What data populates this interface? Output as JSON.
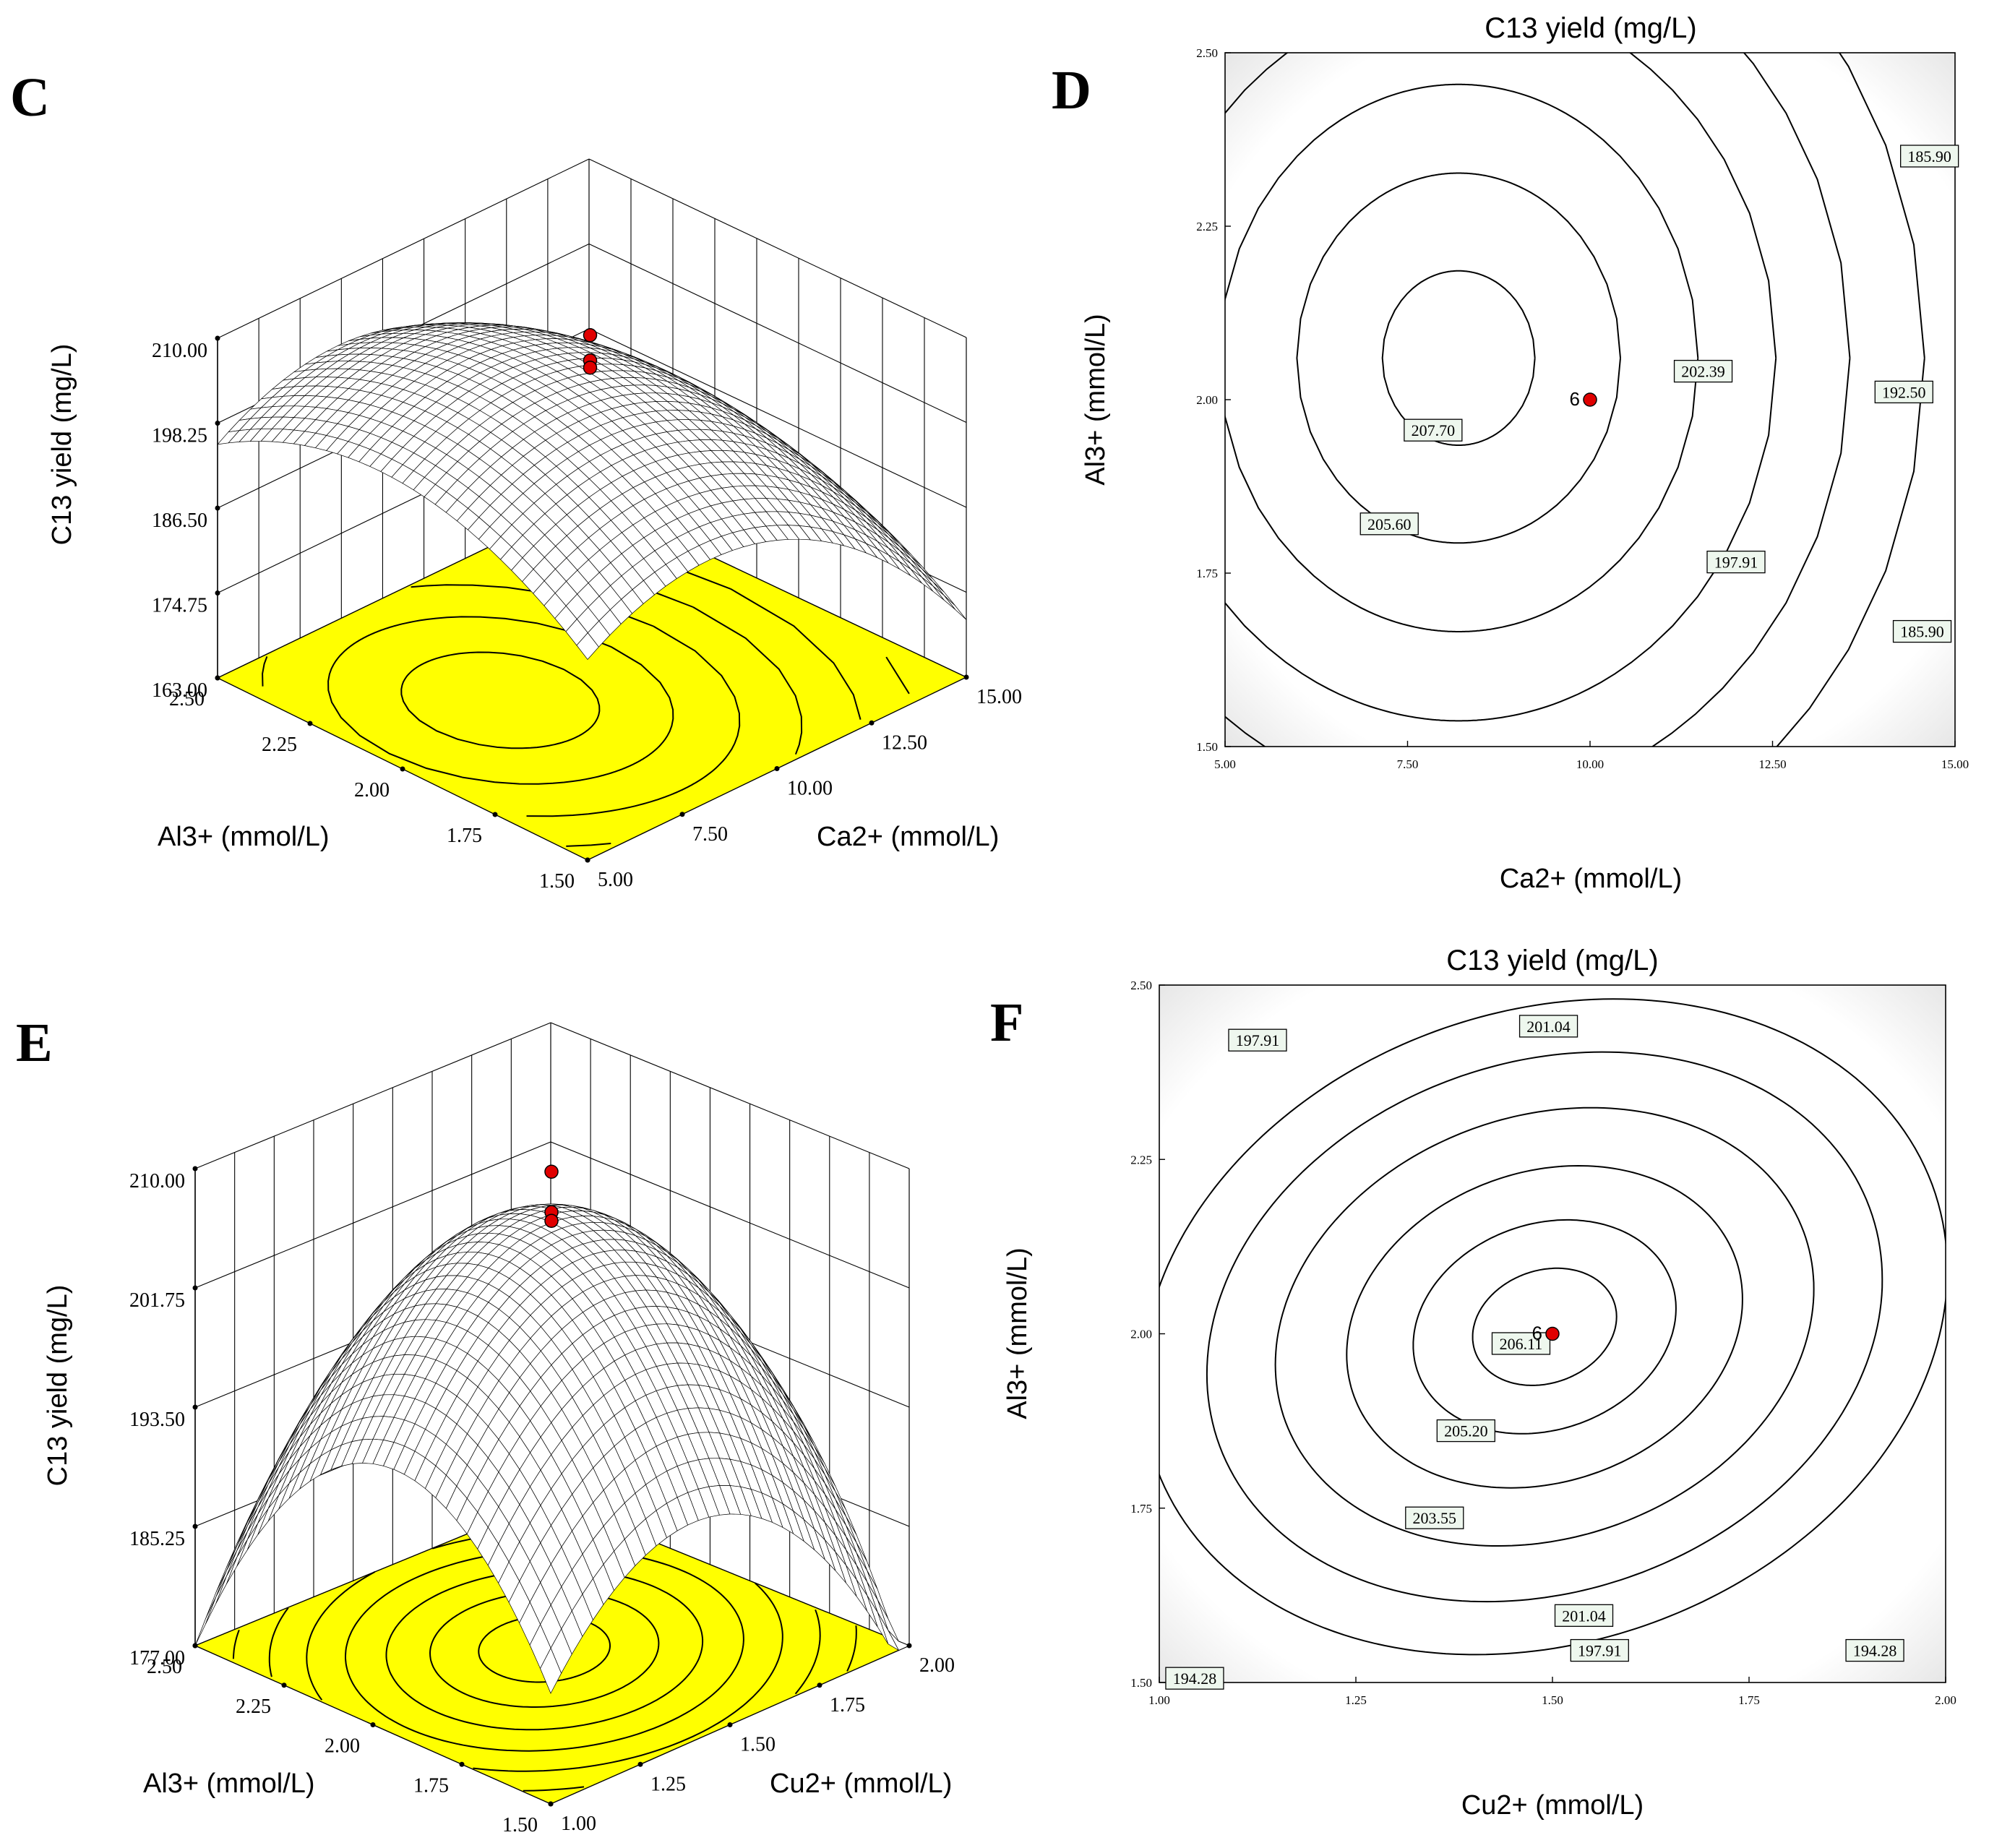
{
  "chart_data": [
    {
      "panel": "C",
      "type": "surface3d",
      "zlabel": "C13 yield (mg/L)",
      "xlabel": "Ca2+ (mmol/L)",
      "ylabel": "Al3+ (mmol/L)",
      "x_ticks": [
        "5.00",
        "7.50",
        "10.00",
        "12.50",
        "15.00"
      ],
      "y_ticks": [
        "1.50",
        "1.75",
        "2.00",
        "2.25",
        "2.50"
      ],
      "z_ticks": [
        "163.00",
        "174.75",
        "186.50",
        "198.25",
        "210.00"
      ],
      "xlim": [
        5,
        15
      ],
      "ylim": [
        1.5,
        2.5
      ],
      "zlim": [
        163,
        210
      ],
      "surface": {
        "x0": 8.2,
        "y0": 2.06,
        "z0": 208.3,
        "ax": 0.55,
        "ay": 38,
        "axy": 0
      },
      "design_points": [
        {
          "x": 10,
          "y": 2.0,
          "z": 210.5
        },
        {
          "x": 10,
          "y": 2.0,
          "z": 207.0
        },
        {
          "x": 10,
          "y": 2.0,
          "z": 206.0
        }
      ],
      "floor_contours": true
    },
    {
      "panel": "D",
      "type": "contour",
      "title": "C13 yield (mg/L)",
      "xlabel": "Ca2+ (mmol/L)",
      "ylabel": "Al3+ (mmol/L)",
      "x_ticks": [
        "5.00",
        "7.50",
        "10.00",
        "12.50",
        "15.00"
      ],
      "y_ticks": [
        "1.50",
        "1.75",
        "2.00",
        "2.25",
        "2.50"
      ],
      "xlim": [
        5,
        15
      ],
      "ylim": [
        1.5,
        2.5
      ],
      "surface": {
        "x0": 8.2,
        "y0": 2.06,
        "z0": 208.3,
        "ax": 0.55,
        "ay": 38,
        "axy": 0
      },
      "levels": [
        207.7,
        205.6,
        202.39,
        197.91,
        192.5,
        185.9
      ],
      "labels": [
        {
          "text": "207.70",
          "x": 7.85,
          "y": 1.955
        },
        {
          "text": "205.60",
          "x": 7.25,
          "y": 1.82
        },
        {
          "text": "202.39",
          "x": 11.55,
          "y": 2.04
        },
        {
          "text": "197.91",
          "x": 12.0,
          "y": 1.765
        },
        {
          "text": "192.50",
          "x": 14.3,
          "y": 2.01
        },
        {
          "text": "185.90",
          "x": 14.65,
          "y": 2.35
        },
        {
          "text": "185.90",
          "x": 14.55,
          "y": 1.665
        }
      ],
      "point": {
        "x": 10,
        "y": 2.0,
        "label": "6"
      }
    },
    {
      "panel": "E",
      "type": "surface3d",
      "zlabel": "C13 yield (mg/L)",
      "xlabel": "Cu2+ (mmol/L)",
      "ylabel": "Al3+ (mmol/L)",
      "x_ticks": [
        "1.00",
        "1.25",
        "1.50",
        "1.75",
        "2.00"
      ],
      "y_ticks": [
        "1.50",
        "1.75",
        "2.00",
        "2.25",
        "2.50"
      ],
      "z_ticks": [
        "177.00",
        "185.25",
        "193.50",
        "201.75",
        "210.00"
      ],
      "xlim": [
        1,
        2
      ],
      "ylim": [
        1.5,
        2.5
      ],
      "zlim": [
        177,
        210
      ],
      "surface": {
        "x0": 1.49,
        "y0": 2.01,
        "z0": 206.5,
        "ax": 48,
        "ay": 57,
        "axy": -18
      },
      "design_points": [
        {
          "x": 1.5,
          "y": 2.0,
          "z": 210.0
        },
        {
          "x": 1.5,
          "y": 2.0,
          "z": 207.2
        },
        {
          "x": 1.5,
          "y": 2.0,
          "z": 206.6
        }
      ],
      "floor_contours": true
    },
    {
      "panel": "F",
      "type": "contour",
      "title": "C13 yield (mg/L)",
      "xlabel": "Cu2+ (mmol/L)",
      "ylabel": "Al3+ (mmol/L)",
      "x_ticks": [
        "1.00",
        "1.25",
        "1.50",
        "1.75",
        "2.00"
      ],
      "y_ticks": [
        "1.50",
        "1.75",
        "2.00",
        "2.25",
        "2.50"
      ],
      "xlim": [
        1,
        2
      ],
      "ylim": [
        1.5,
        2.5
      ],
      "surface": {
        "x0": 1.49,
        "y0": 2.01,
        "z0": 206.5,
        "ax": 48,
        "ay": 57,
        "axy": -18
      },
      "levels": [
        206.11,
        205.2,
        203.55,
        201.04,
        197.91,
        194.28
      ],
      "labels": [
        {
          "text": "206.11",
          "x": 1.46,
          "y": 1.985
        },
        {
          "text": "205.20",
          "x": 1.39,
          "y": 1.86
        },
        {
          "text": "203.55",
          "x": 1.35,
          "y": 1.735
        },
        {
          "text": "201.04",
          "x": 1.54,
          "y": 1.595
        },
        {
          "text": "197.91",
          "x": 1.56,
          "y": 1.545
        },
        {
          "text": "194.28",
          "x": 1.91,
          "y": 1.545
        },
        {
          "text": "194.28",
          "x": 1.045,
          "y": 1.505
        },
        {
          "text": "197.91",
          "x": 1.125,
          "y": 2.42
        },
        {
          "text": "201.04",
          "x": 1.495,
          "y": 2.44
        }
      ],
      "point": {
        "x": 1.5,
        "y": 2.0,
        "label": "6"
      }
    }
  ]
}
